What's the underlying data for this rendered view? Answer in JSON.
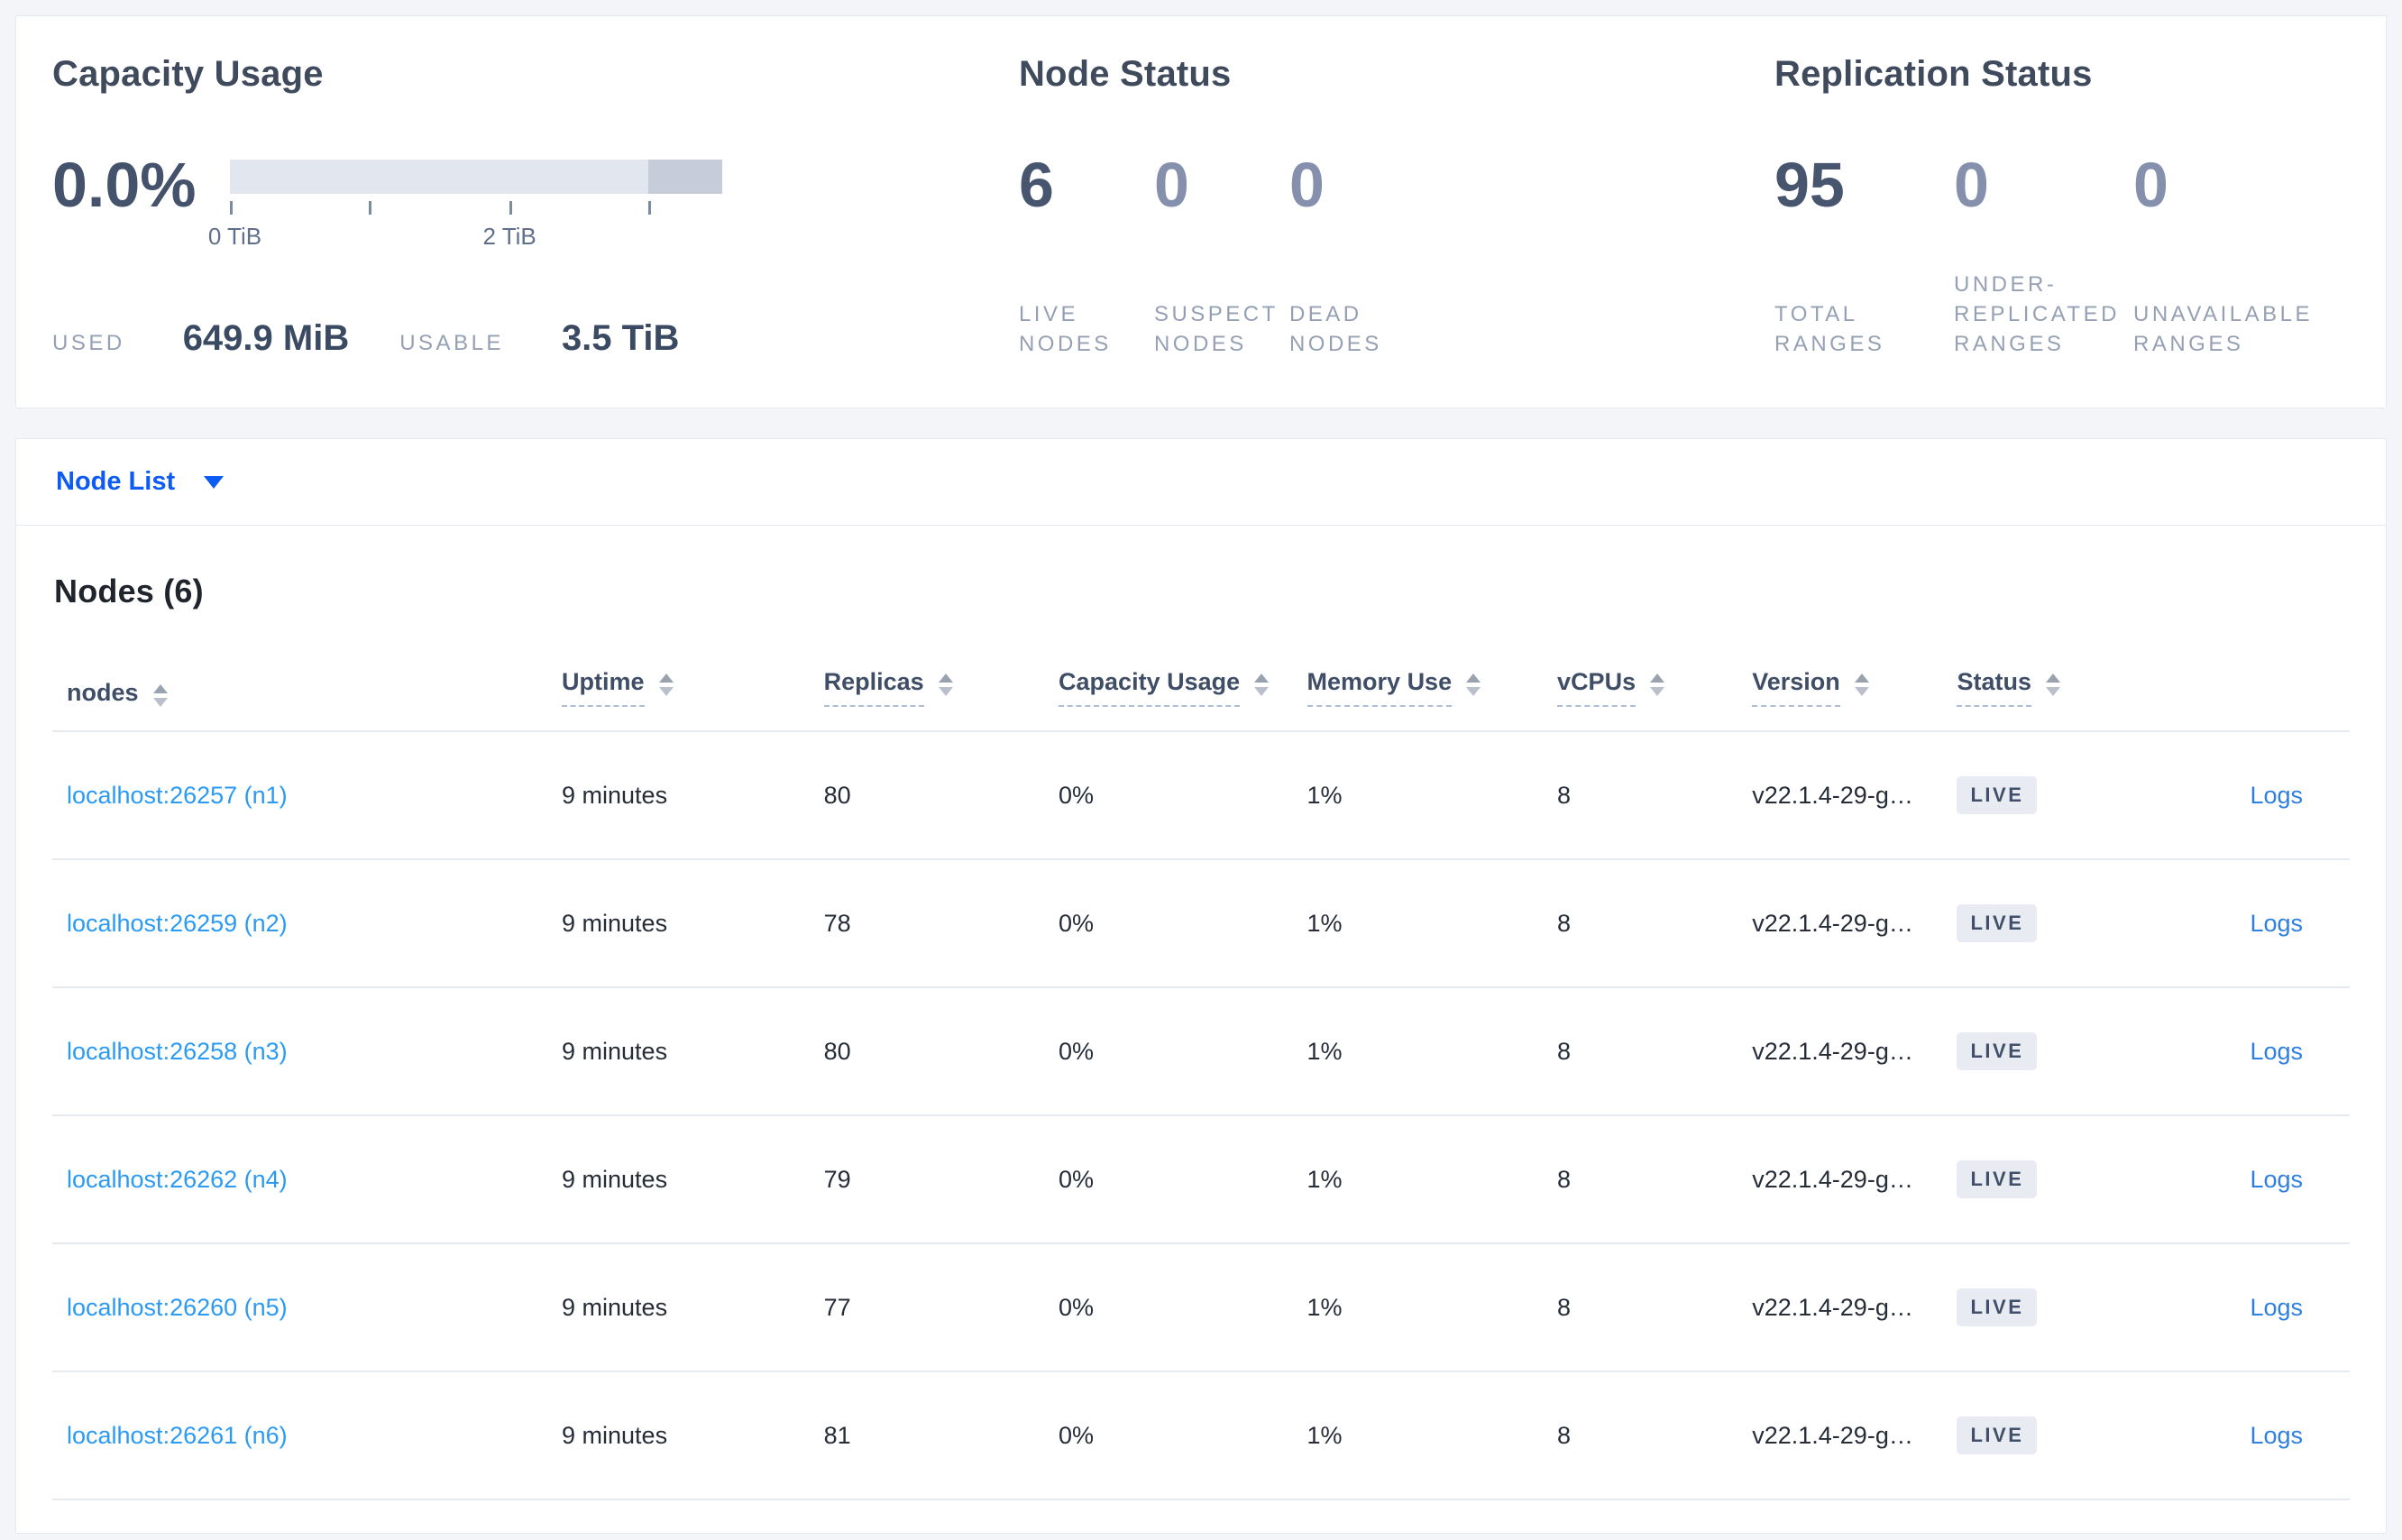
{
  "summary": {
    "capacity": {
      "title": "Capacity Usage",
      "percent": "0.0%",
      "used_label": "USED",
      "used_value": "649.9 MiB",
      "usable_label": "USABLE",
      "usable_value": "3.5 TiB",
      "ticks": [
        {
          "label": "0 TiB"
        },
        {
          "label": ""
        },
        {
          "label": "2 TiB"
        },
        {
          "label": ""
        }
      ]
    },
    "node_status": {
      "title": "Node Status",
      "stats": [
        {
          "value": "6",
          "label": "LIVE NODES"
        },
        {
          "value": "0",
          "label": "SUSPECT NODES"
        },
        {
          "value": "0",
          "label": "DEAD NODES"
        }
      ]
    },
    "replication": {
      "title": "Replication Status",
      "stats": [
        {
          "value": "95",
          "label": "TOTAL RANGES"
        },
        {
          "value": "0",
          "label": "UNDER-REPLICATED RANGES"
        },
        {
          "value": "0",
          "label": "UNAVAILABLE RANGES"
        }
      ]
    }
  },
  "view_selector": {
    "label": "Node List"
  },
  "nodes_section": {
    "heading": "Nodes (6)",
    "columns": [
      {
        "label": "nodes"
      },
      {
        "label": "Uptime"
      },
      {
        "label": "Replicas"
      },
      {
        "label": "Capacity Usage"
      },
      {
        "label": "Memory Use"
      },
      {
        "label": "vCPUs"
      },
      {
        "label": "Version"
      },
      {
        "label": "Status"
      }
    ],
    "rows": [
      {
        "node": "localhost:26257 (n1)",
        "uptime": "9 minutes",
        "replicas": "80",
        "capacity_usage": "0%",
        "memory_use": "1%",
        "vcpus": "8",
        "version": "v22.1.4-29-g…",
        "status": "LIVE",
        "logs": "Logs"
      },
      {
        "node": "localhost:26259 (n2)",
        "uptime": "9 minutes",
        "replicas": "78",
        "capacity_usage": "0%",
        "memory_use": "1%",
        "vcpus": "8",
        "version": "v22.1.4-29-g…",
        "status": "LIVE",
        "logs": "Logs"
      },
      {
        "node": "localhost:26258 (n3)",
        "uptime": "9 minutes",
        "replicas": "80",
        "capacity_usage": "0%",
        "memory_use": "1%",
        "vcpus": "8",
        "version": "v22.1.4-29-g…",
        "status": "LIVE",
        "logs": "Logs"
      },
      {
        "node": "localhost:26262 (n4)",
        "uptime": "9 minutes",
        "replicas": "79",
        "capacity_usage": "0%",
        "memory_use": "1%",
        "vcpus": "8",
        "version": "v22.1.4-29-g…",
        "status": "LIVE",
        "logs": "Logs"
      },
      {
        "node": "localhost:26260 (n5)",
        "uptime": "9 minutes",
        "replicas": "77",
        "capacity_usage": "0%",
        "memory_use": "1%",
        "vcpus": "8",
        "version": "v22.1.4-29-g…",
        "status": "LIVE",
        "logs": "Logs"
      },
      {
        "node": "localhost:26261 (n6)",
        "uptime": "9 minutes",
        "replicas": "81",
        "capacity_usage": "0%",
        "memory_use": "1%",
        "vcpus": "8",
        "version": "v22.1.4-29-g…",
        "status": "LIVE",
        "logs": "Logs"
      }
    ]
  },
  "colors": {
    "accent_blue": "#0d5bf2",
    "node_link_blue": "#2b9af3",
    "logs_link_blue": "#2f7fe0",
    "stat_dark": "#47566e",
    "stat_light": "#8590ad",
    "badge_bg": "#e8ebf2",
    "badge_text": "#41506a",
    "bar_track": "#e2e6ee",
    "bar_dark_segment": "#c6ccda"
  }
}
